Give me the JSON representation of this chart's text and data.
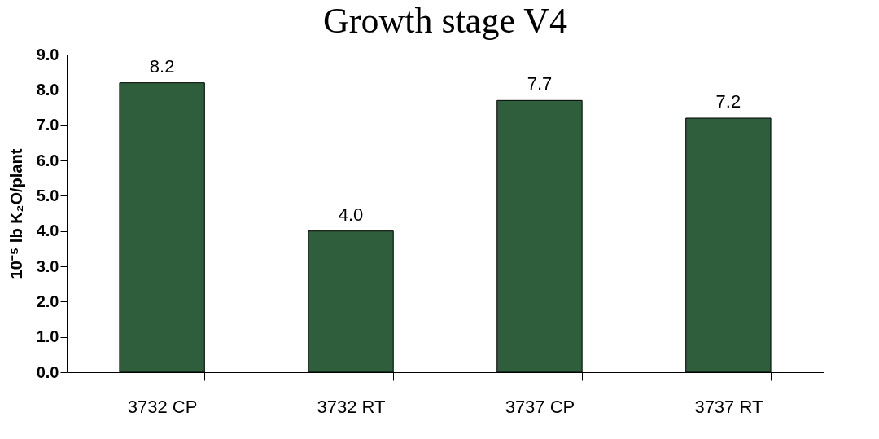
{
  "chart_data": {
    "type": "bar",
    "title": "Growth stage V4",
    "ylabel": "10⁻⁵ lb K₂O/plant",
    "categories": [
      "3732 CP",
      "3732 RT",
      "3737 CP",
      "3737 RT"
    ],
    "values": [
      8.2,
      4.0,
      7.7,
      7.2
    ],
    "value_labels": [
      "8.2",
      "4.0",
      "7.7",
      "7.2"
    ],
    "color": "#2e5e3c",
    "ylim": [
      0,
      9
    ],
    "yticks": [
      {
        "value": 0,
        "label": "0.0"
      },
      {
        "value": 1,
        "label": "1.0"
      },
      {
        "value": 2,
        "label": "2.0"
      },
      {
        "value": 3,
        "label": "3.0"
      },
      {
        "value": 4,
        "label": "4.0"
      },
      {
        "value": 5,
        "label": "5.0"
      },
      {
        "value": 6,
        "label": "6.0"
      },
      {
        "value": 7,
        "label": "7.0"
      },
      {
        "value": 8,
        "label": "8.0"
      },
      {
        "value": 9,
        "label": "9.0"
      }
    ],
    "grid": false
  }
}
